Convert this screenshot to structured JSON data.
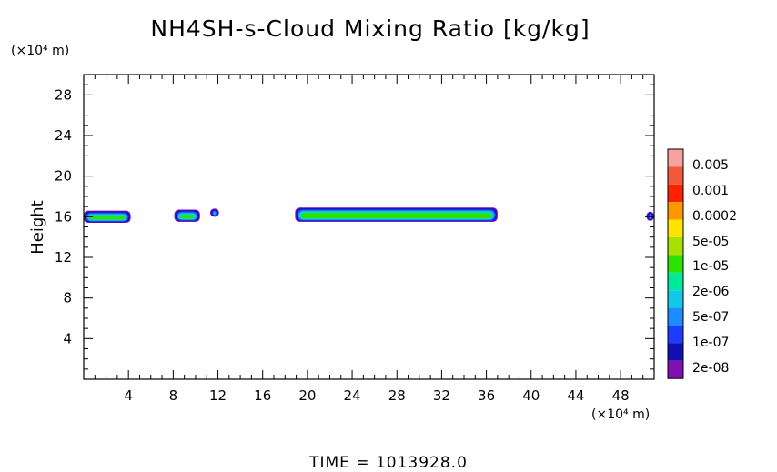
{
  "chart_data": {
    "type": "heatmap",
    "title": "NH4SH-s-Cloud Mixing Ratio [kg/kg]",
    "ylabel": "Height",
    "xlabel": "",
    "y_unit": "(×10⁴ m)",
    "x_unit": "(×10⁴ m)",
    "time_label": "TIME  =  1013928.0",
    "xlim": [
      0,
      51
    ],
    "ylim": [
      0,
      30
    ],
    "x_ticks": [
      4,
      8,
      12,
      16,
      20,
      24,
      28,
      32,
      36,
      40,
      44,
      48
    ],
    "y_ticks": [
      4,
      8,
      12,
      16,
      20,
      24,
      28
    ],
    "colorbar": {
      "labels": [
        "0.005",
        "0.001",
        "0.0002",
        "5e-05",
        "1e-05",
        "2e-06",
        "5e-07",
        "1e-07",
        "2e-08"
      ],
      "colors": [
        "#f7a0a0",
        "#f25a3c",
        "#ff2000",
        "#ff9800",
        "#ffe400",
        "#a8e000",
        "#2ce000",
        "#00e89a",
        "#10c8e8",
        "#1e8cff",
        "#1e3cff",
        "#1010b0",
        "#8010b0"
      ]
    },
    "cloud_layers": [
      {
        "x_start": 0.0,
        "x_end": 4.2,
        "y_bottom": 15.4,
        "y_top": 16.6
      },
      {
        "x_start": 8.1,
        "x_end": 10.4,
        "y_bottom": 15.5,
        "y_top": 16.7
      },
      {
        "x_start": 11.3,
        "x_end": 12.1,
        "y_bottom": 16.0,
        "y_top": 16.8
      },
      {
        "x_start": 18.9,
        "x_end": 37.0,
        "y_bottom": 15.5,
        "y_top": 16.9
      },
      {
        "x_start": 50.3,
        "x_end": 51.0,
        "y_bottom": 15.6,
        "y_top": 16.5
      }
    ]
  }
}
